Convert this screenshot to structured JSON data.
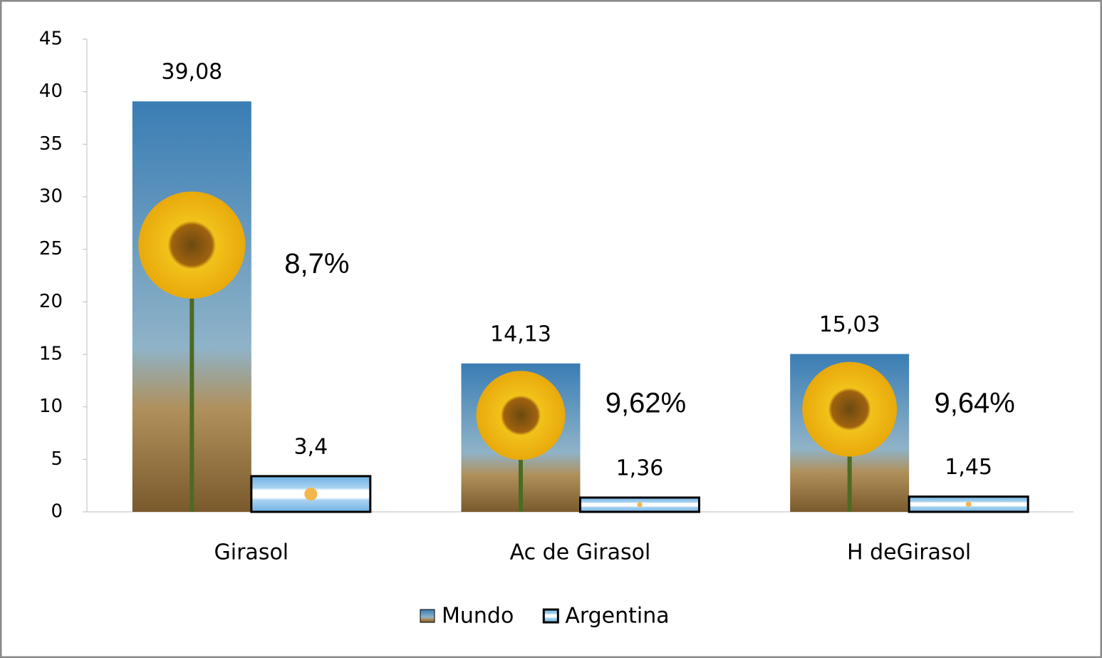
{
  "chart_data": {
    "type": "bar",
    "categories": [
      "Girasol",
      "Ac de Girasol",
      "H deGirasol"
    ],
    "series": [
      {
        "name": "Mundo",
        "color": "#3f7fae",
        "values": [
          39.08,
          14.13,
          15.03
        ],
        "value_labels": [
          "39,08",
          "14,13",
          "15,03"
        ]
      },
      {
        "name": "Argentina",
        "color": "#8ec6ea",
        "values": [
          3.4,
          1.36,
          1.45
        ],
        "value_labels": [
          "3,4",
          "1,36",
          "1,45"
        ]
      }
    ],
    "annotations": [
      "8,7%",
      "9,62%",
      "9,64%"
    ],
    "ylim": [
      0,
      45
    ],
    "yticks": [
      0,
      5,
      10,
      15,
      20,
      25,
      30,
      35,
      40,
      45
    ],
    "grid": false,
    "legend": "bottom"
  }
}
